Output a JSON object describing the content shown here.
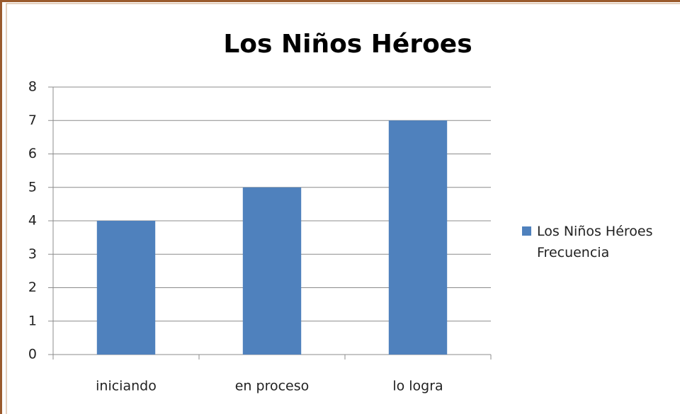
{
  "chart_data": {
    "type": "bar",
    "title": "Los Niños Héroes",
    "categories": [
      "iniciando",
      "en proceso",
      "lo logra"
    ],
    "series": [
      {
        "name": "Los Niños Héroes Frecuencia",
        "color": "#4f81bd",
        "values": [
          4,
          5,
          7
        ]
      }
    ],
    "ylim": [
      0,
      8
    ],
    "yticks": [
      0,
      1,
      2,
      3,
      4,
      5,
      6,
      7,
      8
    ],
    "grid": true,
    "legend": "right"
  }
}
